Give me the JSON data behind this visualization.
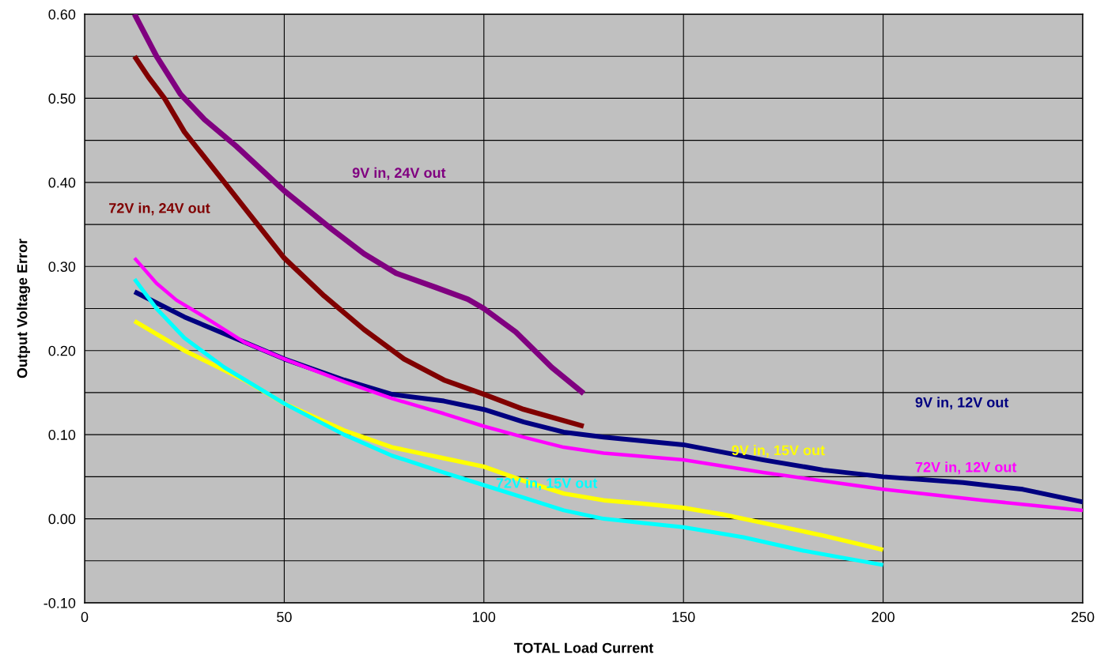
{
  "chart_data": {
    "type": "line",
    "xlabel": "TOTAL Load Current",
    "ylabel": "Output Voltage Error",
    "xlim": [
      0,
      250
    ],
    "xticks": [
      0,
      50,
      100,
      150,
      200,
      250
    ],
    "ylim": [
      -0.1,
      0.6
    ],
    "yticks": [
      {
        "value": -0.1,
        "label": "-0.10"
      },
      {
        "value": -0.05,
        "label": null
      },
      {
        "value": 0,
        "label": "0.00"
      },
      {
        "value": 0.05,
        "label": null
      },
      {
        "value": 0.1,
        "label": "0.10"
      },
      {
        "value": 0.15,
        "label": null
      },
      {
        "value": 0.2,
        "label": "0.20"
      },
      {
        "value": 0.25,
        "label": null
      },
      {
        "value": 0.3,
        "label": "0.30"
      },
      {
        "value": 0.35,
        "label": null
      },
      {
        "value": 0.4,
        "label": "0.40"
      },
      {
        "value": 0.45,
        "label": null
      },
      {
        "value": 0.5,
        "label": "0.50"
      },
      {
        "value": 0.55,
        "label": null
      },
      {
        "value": 0.6,
        "label": "0.60"
      }
    ],
    "grid": true,
    "marker": "none",
    "line_style": "solid",
    "series": [
      {
        "name": "9V in, 24V out",
        "color": "#800080",
        "x": [
          12.5,
          18,
          24,
          30,
          38,
          50,
          62,
          70,
          78,
          88,
          96,
          100,
          108,
          117,
          125
        ],
        "values": [
          0.6,
          0.55,
          0.505,
          0.475,
          0.443,
          0.39,
          0.344,
          0.315,
          0.292,
          0.275,
          0.261,
          0.25,
          0.222,
          0.18,
          0.149
        ]
      },
      {
        "name": "72V in, 24V out",
        "color": "#800000",
        "x": [
          12.5,
          16,
          20,
          25,
          35,
          50,
          60,
          70,
          80,
          90,
          100,
          110,
          125
        ],
        "values": [
          0.55,
          0.525,
          0.5,
          0.46,
          0.4,
          0.31,
          0.265,
          0.225,
          0.19,
          0.165,
          0.148,
          0.13,
          0.11
        ]
      },
      {
        "name": "9V in, 12V out",
        "color": "#000080",
        "x": [
          12.5,
          25,
          40,
          50,
          65,
          77,
          90,
          100,
          110,
          120,
          130,
          150,
          170,
          185,
          200,
          220,
          235,
          250
        ],
        "values": [
          0.27,
          0.24,
          0.21,
          0.19,
          0.165,
          0.148,
          0.14,
          0.13,
          0.115,
          0.103,
          0.097,
          0.088,
          0.07,
          0.058,
          0.05,
          0.043,
          0.035,
          0.02
        ]
      },
      {
        "name": "9V in, 15V out",
        "color": "#ffff00",
        "x": [
          12.5,
          25,
          40,
          50,
          65,
          77,
          90,
          100,
          110,
          120,
          130,
          140,
          150,
          160,
          170,
          185,
          200
        ],
        "values": [
          0.235,
          0.2,
          0.165,
          0.137,
          0.105,
          0.085,
          0.072,
          0.062,
          0.045,
          0.03,
          0.022,
          0.018,
          0.013,
          0.005,
          -0.005,
          -0.02,
          -0.037
        ]
      },
      {
        "name": "72V in, 15V out",
        "color": "#00ffff",
        "x": [
          12.5,
          18,
          25,
          35,
          50,
          65,
          77,
          90,
          100,
          110,
          120,
          130,
          140,
          150,
          165,
          180,
          200
        ],
        "values": [
          0.285,
          0.25,
          0.215,
          0.18,
          0.137,
          0.1,
          0.075,
          0.055,
          0.04,
          0.025,
          0.01,
          0.0,
          -0.005,
          -0.01,
          -0.022,
          -0.038,
          -0.055
        ]
      },
      {
        "name": "72V in, 12V out",
        "color": "#ff00ff",
        "x": [
          12.5,
          18,
          23,
          30,
          40,
          50,
          65,
          77,
          90,
          100,
          110,
          120,
          130,
          140,
          150,
          170,
          185,
          200,
          225,
          250
        ],
        "values": [
          0.31,
          0.28,
          0.26,
          0.24,
          0.21,
          0.19,
          0.163,
          0.143,
          0.125,
          0.11,
          0.097,
          0.085,
          0.078,
          0.074,
          0.07,
          0.055,
          0.045,
          0.035,
          0.022,
          0.01
        ]
      }
    ]
  }
}
